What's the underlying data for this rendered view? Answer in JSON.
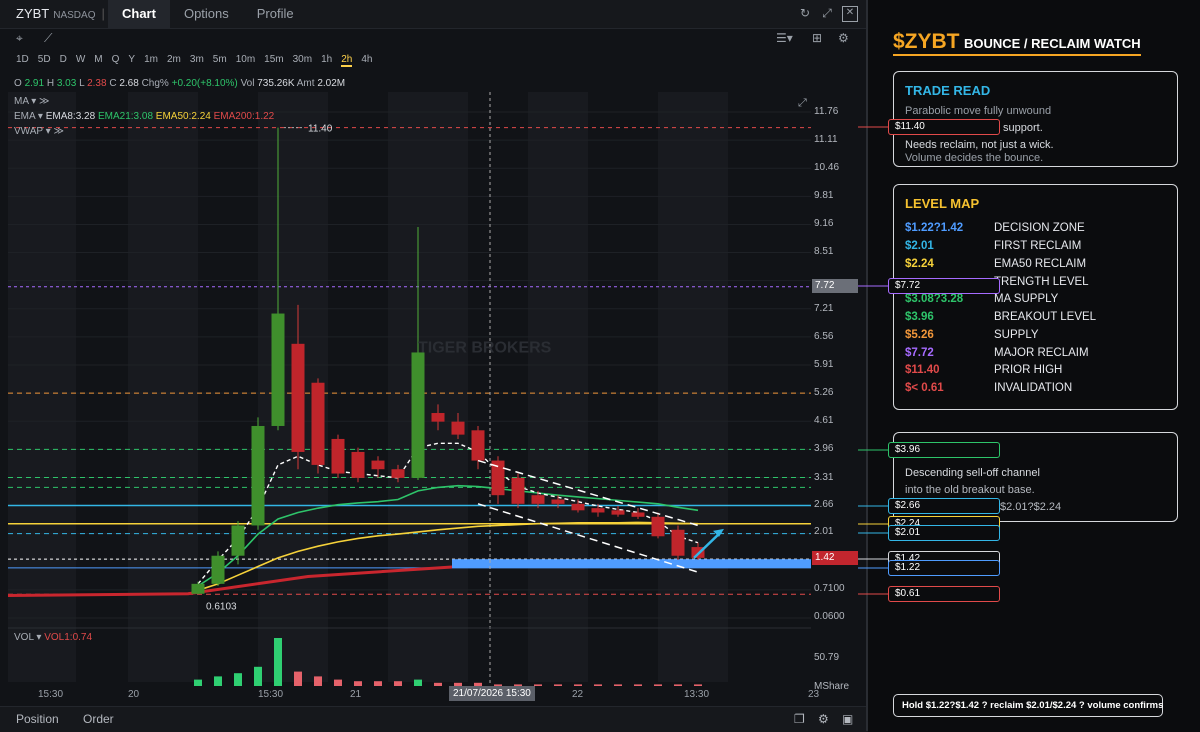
{
  "symbol": "ZYBT",
  "exchange": "NASDAQ",
  "separator": "|",
  "tabs": [
    "Chart",
    "Options",
    "Profile"
  ],
  "timeframes": [
    "1D",
    "5D",
    "D",
    "W",
    "M",
    "Q",
    "Y",
    "1m",
    "2m",
    "3m",
    "5m",
    "10m",
    "15m",
    "30m",
    "1h",
    "2h",
    "4h"
  ],
  "active_timeframe": "2h",
  "ohlc": {
    "o_label": "O",
    "o": "2.91",
    "h_label": "H",
    "h": "3.03",
    "l_label": "L",
    "l": "2.38",
    "c_label": "C",
    "c": "2.68",
    "chg_label": "Chg%",
    "chg": "+0.20(+8.10%)",
    "vol_label": "Vol",
    "vol": "735.26K",
    "amt_label": "Amt",
    "amt": "2.02M"
  },
  "indicators": {
    "ma": "MA",
    "ema": "EMA",
    "ema8": "EMA8:3.28",
    "ema21": "EMA21:3.08",
    "ema50": "EMA50:2.24",
    "ema200": "EMA200:1.22",
    "vwap": "VWAP",
    "vol": "VOL",
    "vol1": "VOL1:0.74"
  },
  "y_axis": [
    "11.76",
    "11.11",
    "10.46",
    "9.81",
    "9.16",
    "8.51",
    "7.86",
    "7.21",
    "6.56",
    "5.91",
    "5.26",
    "4.61",
    "3.96",
    "3.31",
    "2.66",
    "2.01",
    "1.42",
    "0.7100",
    "0.0600",
    "50.79",
    "MShare"
  ],
  "marker_72": "7.72",
  "marker_142": "1.42",
  "peak_label": "11.40",
  "low_label": "0.6103",
  "x_axis": [
    "15:30",
    "20",
    "15:30",
    "21",
    "22",
    "13:30",
    "23"
  ],
  "x_highlight": "21/07/2026 15:30",
  "watermark": "TIGER BROKERS",
  "bottom": {
    "position": "Position",
    "order": "Order"
  },
  "colors": {
    "green": "#2ec46a",
    "red": "#e14a4a",
    "cyan": "#33b6e6",
    "yellow": "#f6d23a",
    "blue": "#4f9cff",
    "purple": "#a66bff",
    "orange": "#f2973a"
  },
  "price_boxes": [
    {
      "label": "$11.40",
      "color": "#e14a4a"
    },
    {
      "label": "$7.72",
      "color": "#a66bff"
    },
    {
      "label": "$3.96",
      "color": "#2ec46a"
    },
    {
      "label": "$2.66",
      "color": "#33b6e6"
    },
    {
      "label": "$2.24",
      "color": "#f6d23a"
    },
    {
      "label": "$2.01",
      "color": "#33b6e6"
    },
    {
      "label": "$1.42",
      "color": "#d6d8dc"
    },
    {
      "label": "$1.22",
      "color": "#4f9cff"
    },
    {
      "label": "$0.61",
      "color": "#e14a4a"
    }
  ],
  "headline": {
    "ticker": "$ZYBT",
    "text": "BOUNCE / RECLAIM WATCH"
  },
  "trade_read": {
    "title": "TRADE READ",
    "lines": [
      "Parabolic move fully unwound",
      "support.",
      "Needs reclaim, not just a wick.",
      "Volume decides the bounce."
    ]
  },
  "level_map": {
    "title": "LEVEL MAP",
    "items": [
      {
        "price": "$1.22?1.42",
        "desc": "DECISION ZONE",
        "color": "#4f9cff"
      },
      {
        "price": "$2.01",
        "desc": "FIRST RECLAIM",
        "color": "#33b6e6"
      },
      {
        "price": "$2.24",
        "desc": "EMA50 RECLAIM",
        "color": "#f6d23a"
      },
      {
        "price": "",
        "desc": "TRENGTH LEVEL",
        "color": "#2ec46a"
      },
      {
        "price": "$3.08?3.28",
        "desc": "MA SUPPLY",
        "color": "#2ec46a"
      },
      {
        "price": "$3.96",
        "desc": "BREAKOUT LEVEL",
        "color": "#2ec46a"
      },
      {
        "price": "$5.26",
        "desc": "SUPPLY",
        "color": "#f2973a"
      },
      {
        "price": "$7.72",
        "desc": "MAJOR RECLAIM",
        "color": "#a66bff"
      },
      {
        "price": "$11.40",
        "desc": "PRIOR HIGH",
        "color": "#e14a4a"
      },
      {
        "price": "$< 0.61",
        "desc": "INVALIDATION",
        "color": "#e14a4a"
      }
    ]
  },
  "channel_note": {
    "lines": [
      "Descending sell-off channel",
      "into the old breakout base."
    ],
    "tail": "$2.01?$2.24"
  },
  "footer_note": "Hold $1.22?$1.42 ? reclaim $2.01/$2.24 ? volume confirms",
  "chart_data": {
    "type": "candlestick",
    "y_ticks": [
      11.76,
      11.11,
      10.46,
      9.81,
      9.16,
      8.51,
      7.86,
      7.21,
      6.56,
      5.91,
      5.26,
      4.61,
      3.96,
      3.31,
      2.66,
      2.01,
      1.42,
      0.71,
      0.06
    ],
    "levels": [
      11.4,
      7.72,
      5.26,
      3.96,
      3.31,
      3.08,
      2.66,
      2.24,
      2.01,
      1.42,
      1.22,
      0.61
    ],
    "candles": [
      {
        "o": 0.62,
        "h": 0.9,
        "l": 0.61,
        "c": 0.85
      },
      {
        "o": 0.85,
        "h": 1.6,
        "l": 0.8,
        "c": 1.5
      },
      {
        "o": 1.5,
        "h": 2.3,
        "l": 1.3,
        "c": 2.2
      },
      {
        "o": 2.2,
        "h": 4.7,
        "l": 2.1,
        "c": 4.5
      },
      {
        "o": 4.5,
        "h": 11.4,
        "l": 4.4,
        "c": 7.1
      },
      {
        "o": 6.4,
        "h": 7.3,
        "l": 3.5,
        "c": 3.9
      },
      {
        "o": 5.5,
        "h": 5.6,
        "l": 3.4,
        "c": 3.6
      },
      {
        "o": 4.2,
        "h": 4.3,
        "l": 3.3,
        "c": 3.4
      },
      {
        "o": 3.9,
        "h": 4.0,
        "l": 3.2,
        "c": 3.3
      },
      {
        "o": 3.7,
        "h": 3.8,
        "l": 3.3,
        "c": 3.5
      },
      {
        "o": 3.5,
        "h": 3.6,
        "l": 3.2,
        "c": 3.3
      },
      {
        "o": 3.3,
        "h": 9.1,
        "l": 3.25,
        "c": 6.2
      },
      {
        "o": 4.8,
        "h": 5.0,
        "l": 4.4,
        "c": 4.6
      },
      {
        "o": 4.6,
        "h": 4.8,
        "l": 4.2,
        "c": 4.3
      },
      {
        "o": 4.4,
        "h": 4.5,
        "l": 3.5,
        "c": 3.7
      },
      {
        "o": 3.7,
        "h": 3.8,
        "l": 2.7,
        "c": 2.9
      },
      {
        "o": 3.3,
        "h": 3.4,
        "l": 2.6,
        "c": 2.7
      },
      {
        "o": 2.9,
        "h": 3.0,
        "l": 2.6,
        "c": 2.7
      },
      {
        "o": 2.8,
        "h": 2.9,
        "l": 2.6,
        "c": 2.7
      },
      {
        "o": 2.7,
        "h": 2.8,
        "l": 2.5,
        "c": 2.55
      },
      {
        "o": 2.6,
        "h": 2.7,
        "l": 2.4,
        "c": 2.5
      },
      {
        "o": 2.55,
        "h": 2.65,
        "l": 2.4,
        "c": 2.45
      },
      {
        "o": 2.5,
        "h": 2.6,
        "l": 2.35,
        "c": 2.4
      },
      {
        "o": 2.4,
        "h": 2.5,
        "l": 1.9,
        "c": 1.95
      },
      {
        "o": 2.1,
        "h": 2.2,
        "l": 1.4,
        "c": 1.5
      },
      {
        "o": 1.7,
        "h": 1.8,
        "l": 1.4,
        "c": 1.45
      }
    ],
    "volume": [
      4,
      6,
      8,
      12,
      30,
      9,
      6,
      4,
      3,
      3,
      3,
      4,
      2,
      2,
      2,
      1,
      1,
      1,
      1,
      1,
      1,
      1,
      1,
      1,
      1,
      1
    ]
  }
}
